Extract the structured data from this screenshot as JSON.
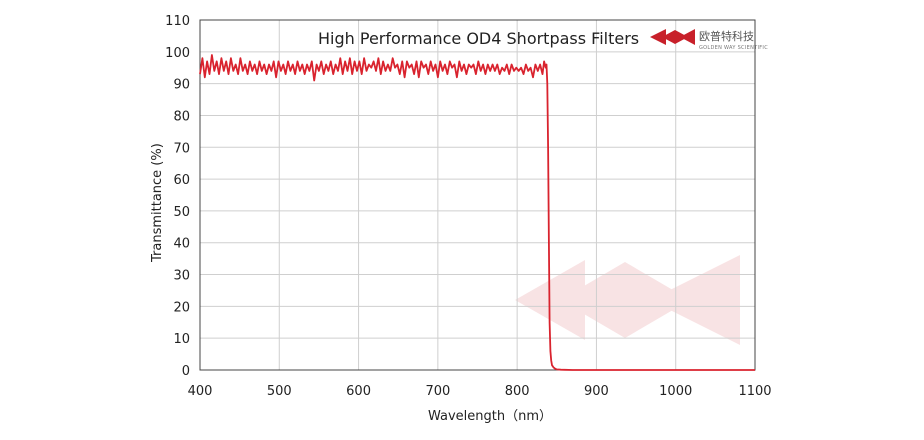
{
  "logo": {
    "text": "欧普特科技",
    "subtext": "GOLDEN WAY SCIENTIFIC",
    "color": "#c8202a"
  },
  "chart_data": {
    "type": "line",
    "title": "High Performance OD4 Shortpass  Filters",
    "xlabel": "Wavelength（nm）",
    "ylabel": "Transmittance (%)",
    "xlim": [
      400,
      1100
    ],
    "ylim": [
      0,
      110
    ],
    "x_ticks": [
      400,
      500,
      600,
      700,
      800,
      900,
      1000,
      1100
    ],
    "y_ticks": [
      0,
      10,
      20,
      30,
      40,
      50,
      60,
      70,
      80,
      90,
      100,
      110
    ],
    "grid": true,
    "legend": "none",
    "line_color": "#d9232e",
    "series": [
      {
        "x": [
          400,
          403,
          406,
          409,
          412,
          415,
          418,
          421,
          424,
          427,
          430,
          433,
          436,
          439,
          442,
          445,
          448,
          451,
          454,
          457,
          460,
          463,
          466,
          469,
          472,
          475,
          478,
          481,
          484,
          487,
          490,
          493,
          496,
          499,
          502,
          505,
          508,
          511,
          514,
          517,
          520,
          523,
          526,
          529,
          532,
          535,
          538,
          541,
          544,
          547,
          550,
          553,
          556,
          559,
          562,
          565,
          568,
          571,
          574,
          577,
          580,
          583,
          586,
          589,
          592,
          595,
          598,
          601,
          604,
          607,
          610,
          613,
          616,
          619,
          622,
          625,
          628,
          631,
          634,
          637,
          640,
          643,
          646,
          649,
          652,
          655,
          658,
          661,
          664,
          667,
          670,
          673,
          676,
          679,
          682,
          685,
          688,
          691,
          694,
          697,
          700,
          703,
          706,
          709,
          712,
          715,
          718,
          721,
          724,
          727,
          730,
          733,
          736,
          739,
          742,
          745,
          748,
          751,
          754,
          757,
          760,
          763,
          766,
          769,
          772,
          775,
          778,
          781,
          784,
          787,
          790,
          793,
          796,
          799,
          802,
          805,
          808,
          811,
          814,
          817,
          820,
          823,
          826,
          829,
          832,
          834,
          836,
          837,
          838,
          839,
          840,
          841,
          842,
          843,
          844,
          846,
          848,
          850,
          855,
          860,
          870,
          880,
          900,
          950,
          1000,
          1050,
          1100
        ],
        "y": [
          93,
          98,
          92,
          97,
          93,
          99,
          94,
          97,
          93,
          98,
          94,
          97,
          93,
          98,
          94,
          96,
          93,
          98,
          94,
          96,
          93,
          97,
          94,
          96,
          93,
          97,
          94,
          96,
          93,
          96,
          94,
          97,
          92,
          97,
          94,
          96,
          93,
          97,
          94,
          96,
          93,
          97,
          94,
          96,
          93,
          96,
          94,
          97,
          91,
          96,
          94,
          97,
          93,
          96,
          94,
          97,
          93,
          96,
          94,
          98,
          93,
          97,
          94,
          98,
          93,
          97,
          94,
          97,
          93,
          98,
          94,
          96,
          95,
          97,
          94,
          98,
          93,
          97,
          94,
          96,
          94,
          98,
          95,
          96,
          93,
          97,
          92,
          97,
          95,
          96,
          93,
          97,
          92,
          97,
          95,
          96,
          93,
          97,
          94,
          96,
          92,
          97,
          94,
          96,
          93,
          97,
          95,
          96,
          92,
          97,
          94,
          96,
          93,
          96,
          95,
          96,
          93,
          97,
          94,
          96,
          93,
          96,
          94,
          96,
          94,
          96,
          93,
          95,
          94,
          96,
          93,
          96,
          94,
          95,
          94,
          95,
          93,
          96,
          94,
          95,
          92,
          96,
          94,
          96,
          93,
          97,
          95,
          96,
          90,
          70,
          40,
          15,
          6,
          3,
          1.5,
          0.8,
          0.4,
          0.2,
          0.1,
          0.05,
          0,
          0,
          0,
          0,
          0,
          0,
          0
        ]
      }
    ]
  }
}
